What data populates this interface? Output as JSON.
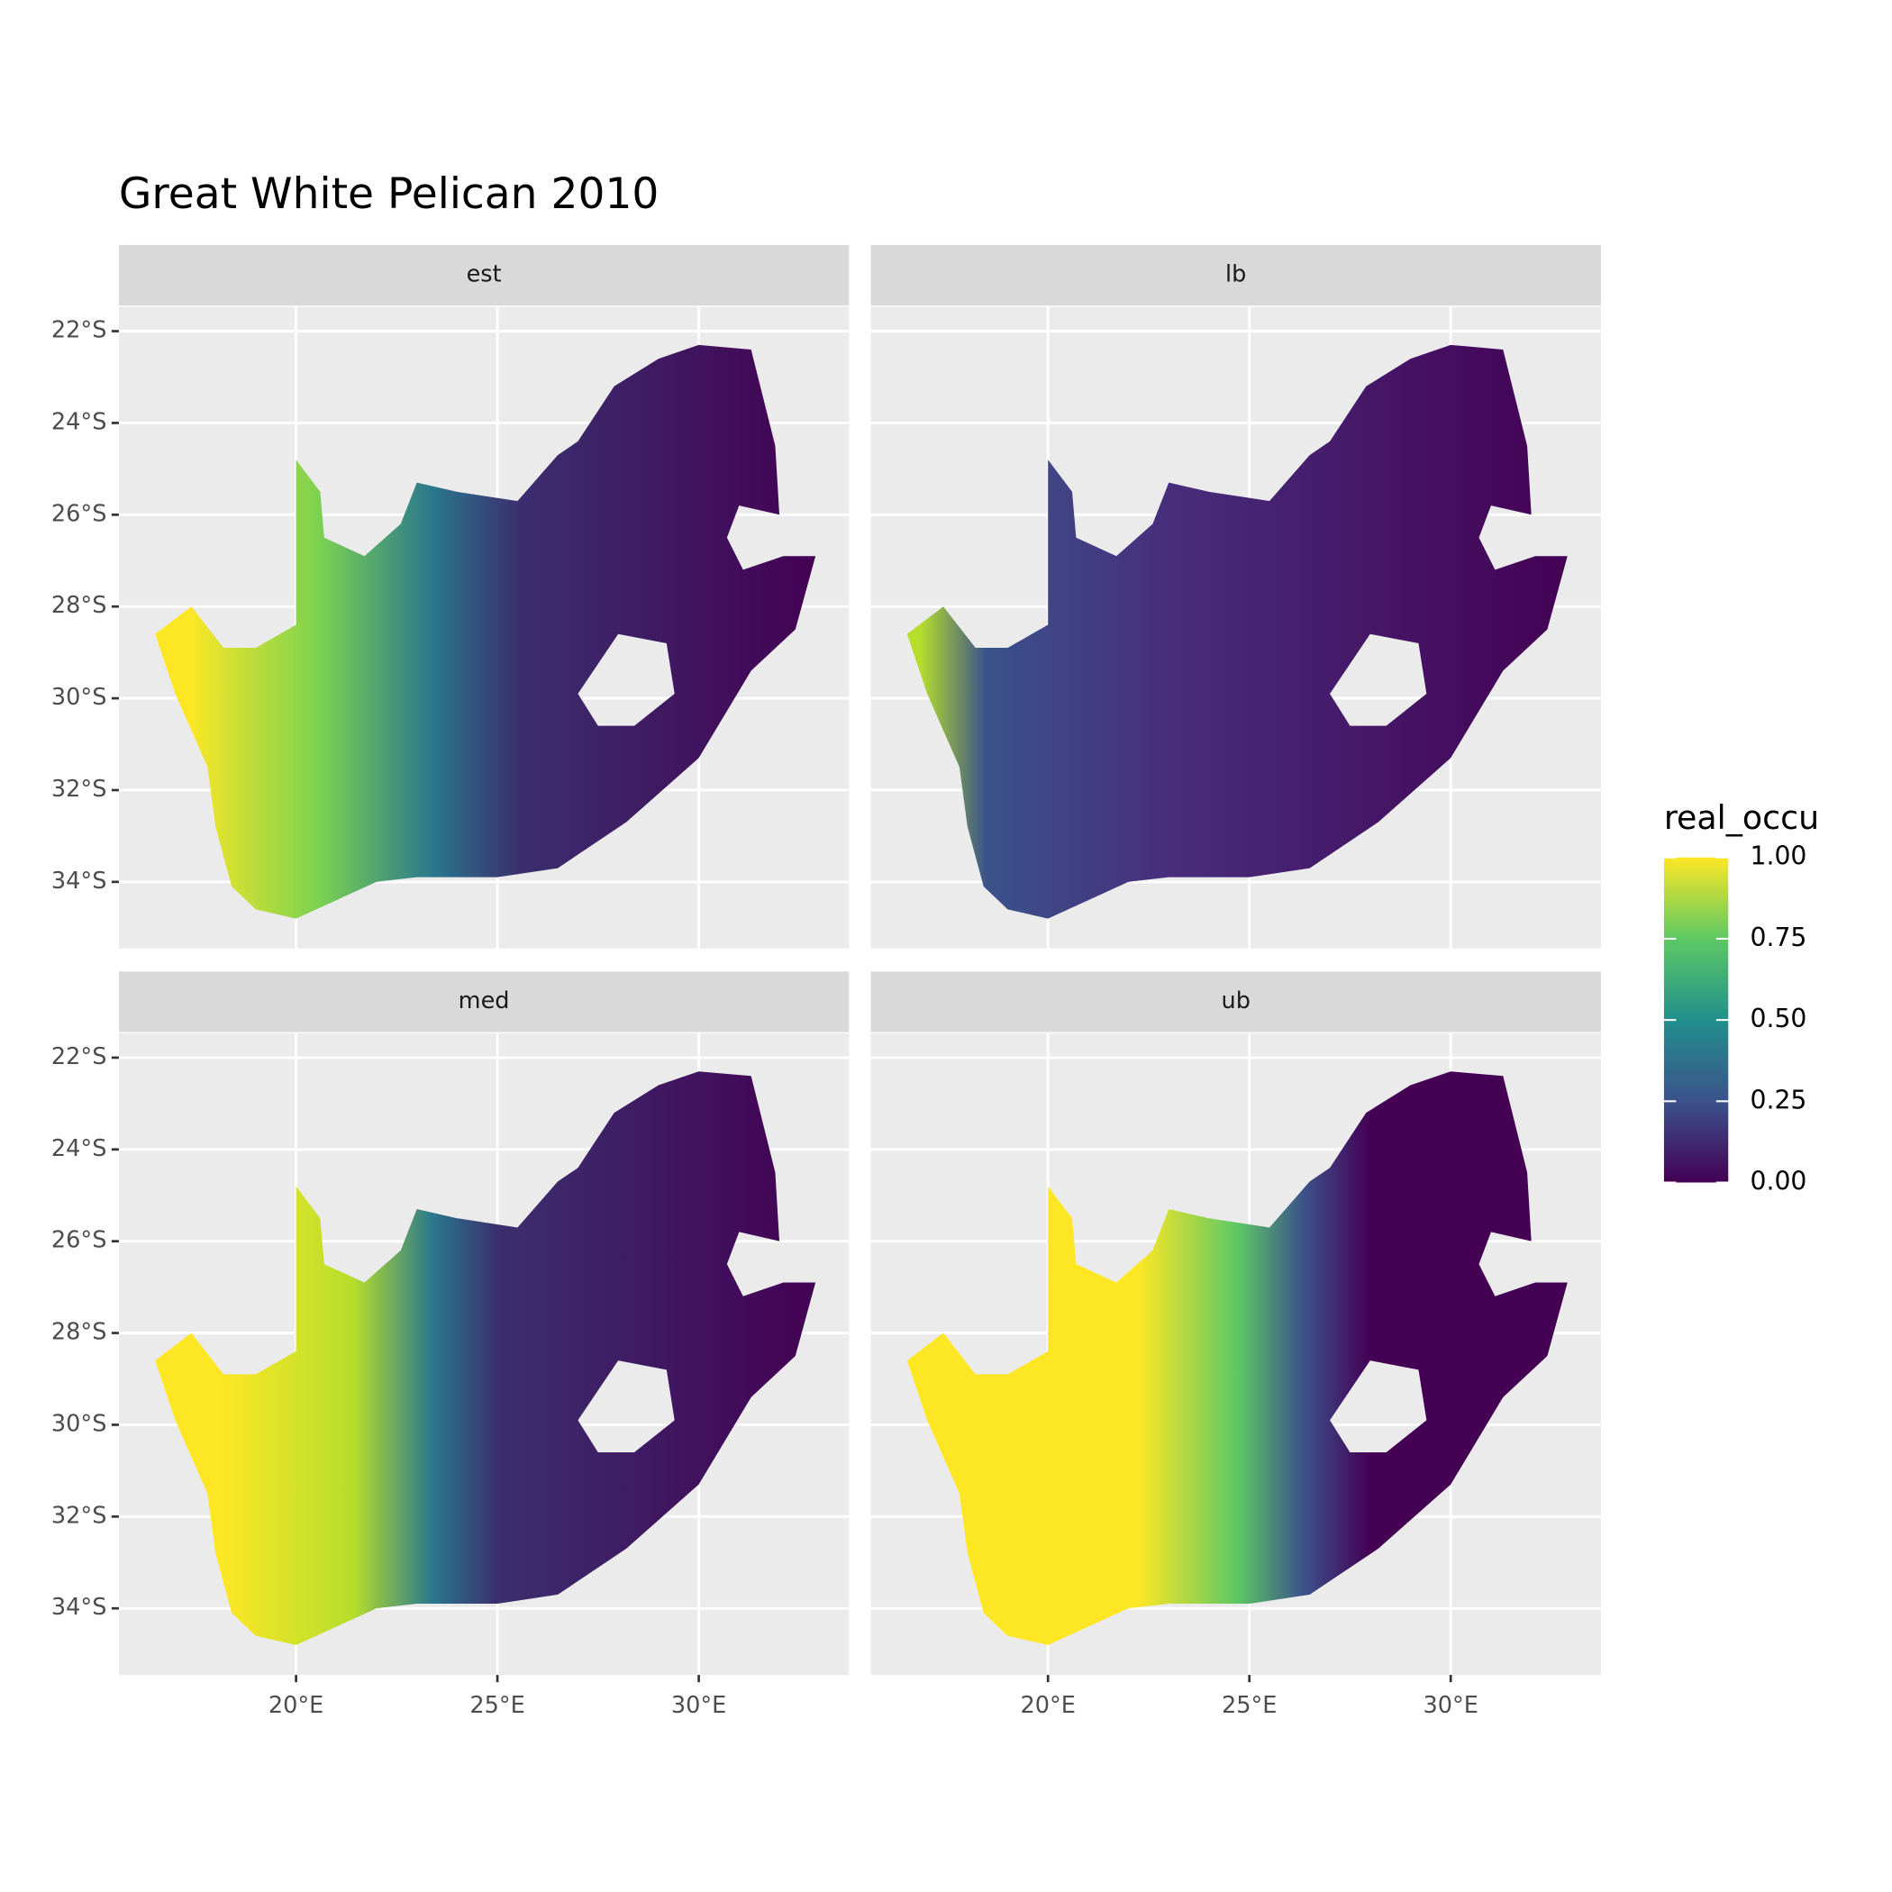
{
  "chart_data": {
    "type": "raster-map",
    "title": "Great White Pelican 2010",
    "facets": [
      "est",
      "lb",
      "med",
      "ub"
    ],
    "xlim": [
      15.6,
      33.73
    ],
    "ylim": [
      -35.45,
      -21.47
    ],
    "xticks": [
      {
        "value": 20,
        "label": "20°E"
      },
      {
        "value": 25,
        "label": "25°E"
      },
      {
        "value": 30,
        "label": "30°E"
      }
    ],
    "yticks": [
      {
        "value": -22,
        "label": "22°S"
      },
      {
        "value": -24,
        "label": "24°S"
      },
      {
        "value": -26,
        "label": "26°S"
      },
      {
        "value": -28,
        "label": "28°S"
      },
      {
        "value": -30,
        "label": "30°S"
      },
      {
        "value": -32,
        "label": "32°S"
      },
      {
        "value": -34,
        "label": "34°S"
      }
    ],
    "grid": true,
    "legend": {
      "title": "real_occu",
      "position": "right",
      "limits": [
        0,
        1
      ],
      "colors": [
        "#440154",
        "#3b528b",
        "#21908c",
        "#5dc863",
        "#fde725"
      ],
      "ticks": [
        {
          "value": 0,
          "label": "0.00"
        },
        0.25,
        {
          "value": 0.5,
          "label": "0.50"
        },
        0.75,
        {
          "value": 1,
          "label": "1.00"
        }
      ]
    }
  }
}
